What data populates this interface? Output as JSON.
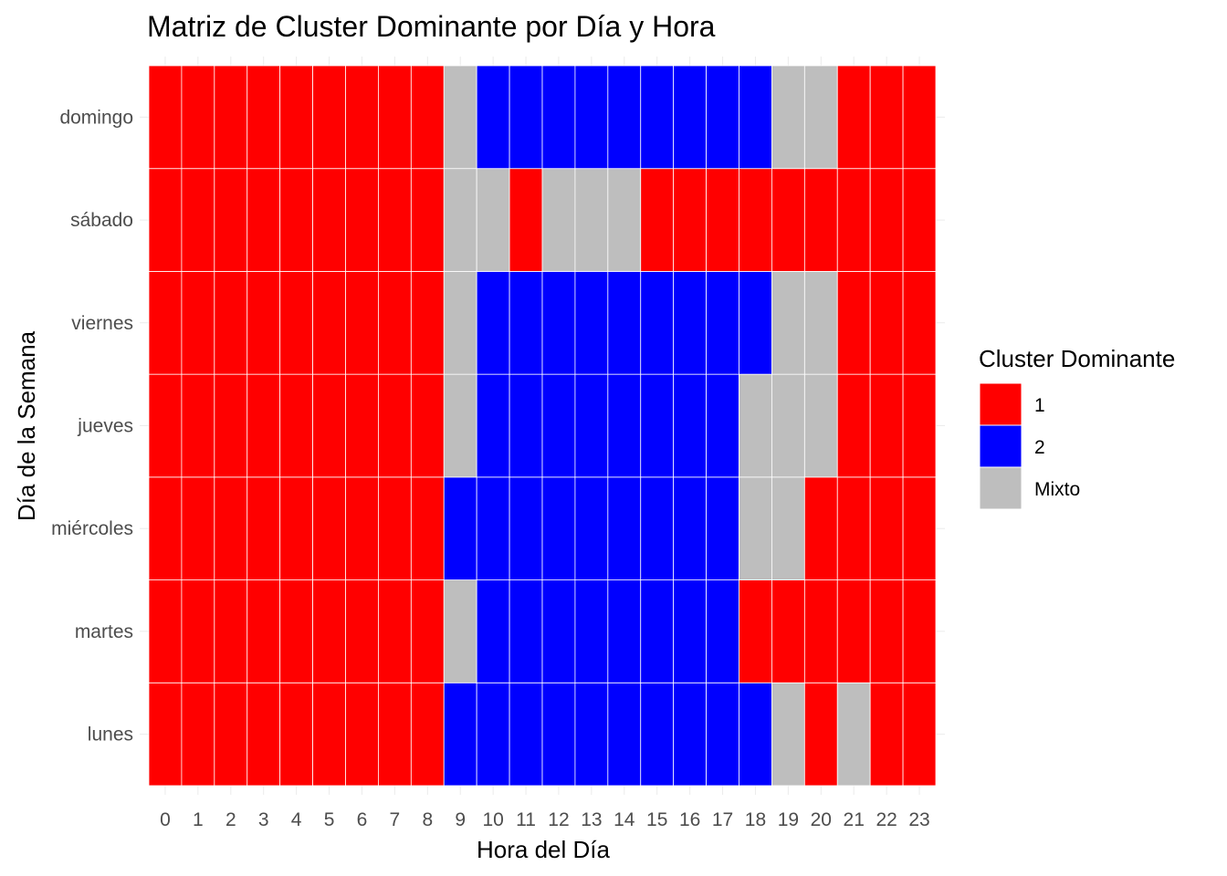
{
  "chart_data": {
    "type": "heatmap",
    "title": "Matriz de Cluster Dominante por Día y Hora",
    "xlabel": "Hora del Día",
    "ylabel": "Día de la Semana",
    "x": [
      "0",
      "1",
      "2",
      "3",
      "4",
      "5",
      "6",
      "7",
      "8",
      "9",
      "10",
      "11",
      "12",
      "13",
      "14",
      "15",
      "16",
      "17",
      "18",
      "19",
      "20",
      "21",
      "22",
      "23"
    ],
    "y": [
      "lunes",
      "martes",
      "miércoles",
      "jueves",
      "viernes",
      "sábado",
      "domingo"
    ],
    "values": [
      [
        "1",
        "1",
        "1",
        "1",
        "1",
        "1",
        "1",
        "1",
        "1",
        "2",
        "2",
        "2",
        "2",
        "2",
        "2",
        "2",
        "2",
        "2",
        "2",
        "Mixto",
        "1",
        "Mixto",
        "1",
        "1"
      ],
      [
        "1",
        "1",
        "1",
        "1",
        "1",
        "1",
        "1",
        "1",
        "1",
        "Mixto",
        "2",
        "2",
        "2",
        "2",
        "2",
        "2",
        "2",
        "2",
        "1",
        "1",
        "1",
        "1",
        "1",
        "1"
      ],
      [
        "1",
        "1",
        "1",
        "1",
        "1",
        "1",
        "1",
        "1",
        "1",
        "2",
        "2",
        "2",
        "2",
        "2",
        "2",
        "2",
        "2",
        "2",
        "Mixto",
        "Mixto",
        "1",
        "1",
        "1",
        "1"
      ],
      [
        "1",
        "1",
        "1",
        "1",
        "1",
        "1",
        "1",
        "1",
        "1",
        "Mixto",
        "2",
        "2",
        "2",
        "2",
        "2",
        "2",
        "2",
        "2",
        "Mixto",
        "Mixto",
        "Mixto",
        "1",
        "1",
        "1"
      ],
      [
        "1",
        "1",
        "1",
        "1",
        "1",
        "1",
        "1",
        "1",
        "1",
        "Mixto",
        "2",
        "2",
        "2",
        "2",
        "2",
        "2",
        "2",
        "2",
        "2",
        "Mixto",
        "Mixto",
        "1",
        "1",
        "1"
      ],
      [
        "1",
        "1",
        "1",
        "1",
        "1",
        "1",
        "1",
        "1",
        "1",
        "Mixto",
        "Mixto",
        "1",
        "Mixto",
        "Mixto",
        "Mixto",
        "1",
        "1",
        "1",
        "1",
        "1",
        "1",
        "1",
        "1",
        "1"
      ],
      [
        "1",
        "1",
        "1",
        "1",
        "1",
        "1",
        "1",
        "1",
        "1",
        "Mixto",
        "2",
        "2",
        "2",
        "2",
        "2",
        "2",
        "2",
        "2",
        "2",
        "Mixto",
        "Mixto",
        "1",
        "1",
        "1"
      ]
    ],
    "legend": {
      "title": "Cluster Dominante",
      "position": "right",
      "items": [
        {
          "label": "1",
          "color": "#ff0000"
        },
        {
          "label": "2",
          "color": "#0000ff"
        },
        {
          "label": "Mixto",
          "color": "#bebebe"
        }
      ]
    },
    "grid": true
  }
}
